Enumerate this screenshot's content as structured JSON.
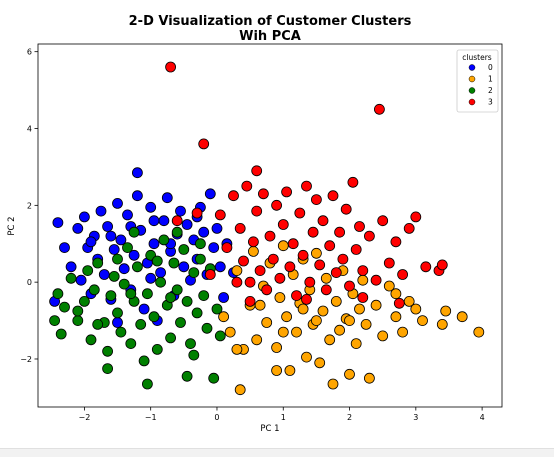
{
  "chart_data": {
    "type": "scatter",
    "title_lines": [
      "2-D Visualization of Customer Clusters",
      "Wih PCA"
    ],
    "xlabel": "PC 1",
    "ylabel": "PC 2",
    "xlim": [
      -2.7,
      4.3
    ],
    "ylim": [
      -3.25,
      6.2
    ],
    "xticks": [
      -2,
      -1,
      0,
      1,
      2,
      3,
      4
    ],
    "yticks": [
      -2,
      0,
      2,
      4,
      6
    ],
    "grid": false,
    "legend": {
      "title": "clusters",
      "placement": "top-right"
    },
    "series": [
      {
        "name": "0",
        "color": "#0000ff",
        "points": [
          [
            -2.4,
            1.55
          ],
          [
            -2.3,
            0.9
          ],
          [
            -2.2,
            0.4
          ],
          [
            -2.1,
            1.4
          ],
          [
            -2.05,
            0.05
          ],
          [
            -2.0,
            1.7
          ],
          [
            -1.95,
            0.9
          ],
          [
            -1.9,
            -0.3
          ],
          [
            -1.85,
            1.2
          ],
          [
            -1.8,
            0.6
          ],
          [
            -1.75,
            1.85
          ],
          [
            -1.7,
            0.2
          ],
          [
            -1.65,
            1.45
          ],
          [
            -1.6,
            -0.45
          ],
          [
            -1.55,
            0.85
          ],
          [
            -1.5,
            2.05
          ],
          [
            -1.45,
            1.1
          ],
          [
            -1.4,
            0.35
          ],
          [
            -1.35,
            1.75
          ],
          [
            -1.3,
            -0.2
          ],
          [
            -1.25,
            0.7
          ],
          [
            -1.2,
            2.25
          ],
          [
            -1.15,
            1.35
          ],
          [
            -1.1,
            -0.7
          ],
          [
            -1.05,
            0.5
          ],
          [
            -1.0,
            1.95
          ],
          [
            -0.95,
            1.0
          ],
          [
            -0.9,
            -1.0
          ],
          [
            -0.85,
            0.25
          ],
          [
            -0.8,
            1.6
          ],
          [
            -0.75,
            2.2
          ],
          [
            -0.7,
            0.8
          ],
          [
            -0.65,
            -0.35
          ],
          [
            -0.6,
            1.25
          ],
          [
            -0.55,
            1.85
          ],
          [
            -0.5,
            0.4
          ],
          [
            -0.45,
            1.5
          ],
          [
            -0.4,
            0.05
          ],
          [
            -0.35,
            1.1
          ],
          [
            -0.3,
            0.6
          ],
          [
            -0.25,
            1.95
          ],
          [
            -0.2,
            1.3
          ],
          [
            -0.15,
            0.2
          ],
          [
            -0.1,
            2.3
          ],
          [
            -0.05,
            0.9
          ],
          [
            0.0,
            1.4
          ],
          [
            0.05,
            0.4
          ],
          [
            0.1,
            -0.4
          ],
          [
            0.15,
            1.0
          ],
          [
            0.25,
            0.25
          ],
          [
            -1.2,
            2.85
          ],
          [
            -1.5,
            -1.05
          ],
          [
            -1.9,
            1.05
          ],
          [
            -1.3,
            1.45
          ],
          [
            -0.95,
            1.6
          ],
          [
            -2.45,
            -0.5
          ],
          [
            -1.6,
            1.2
          ],
          [
            -1.0,
            0.1
          ],
          [
            -0.7,
            1.0
          ],
          [
            -0.3,
            1.7
          ]
        ]
      },
      {
        "name": "1",
        "color": "#ffa500",
        "points": [
          [
            0.1,
            -0.9
          ],
          [
            0.2,
            -1.3
          ],
          [
            0.3,
            0.3
          ],
          [
            0.4,
            -1.75
          ],
          [
            0.5,
            -0.6
          ],
          [
            0.55,
            0.8
          ],
          [
            0.6,
            -1.5
          ],
          [
            0.7,
            -0.1
          ],
          [
            0.75,
            -1.05
          ],
          [
            0.8,
            0.5
          ],
          [
            0.9,
            -1.7
          ],
          [
            0.95,
            -0.4
          ],
          [
            1.0,
            0.95
          ],
          [
            1.05,
            -0.9
          ],
          [
            1.1,
            -2.3
          ],
          [
            1.15,
            0.2
          ],
          [
            1.2,
            -1.3
          ],
          [
            1.25,
            -0.55
          ],
          [
            1.3,
            0.6
          ],
          [
            1.35,
            -1.95
          ],
          [
            1.4,
            -0.2
          ],
          [
            1.45,
            -1.1
          ],
          [
            1.5,
            0.75
          ],
          [
            1.55,
            -2.1
          ],
          [
            1.6,
            -0.75
          ],
          [
            1.65,
            0.1
          ],
          [
            1.7,
            -1.5
          ],
          [
            1.75,
            -2.65
          ],
          [
            1.8,
            -0.5
          ],
          [
            1.85,
            -1.25
          ],
          [
            1.9,
            0.3
          ],
          [
            1.95,
            -0.95
          ],
          [
            2.0,
            -2.4
          ],
          [
            2.05,
            -0.3
          ],
          [
            2.1,
            -1.6
          ],
          [
            2.15,
            -0.7
          ],
          [
            2.2,
            0.05
          ],
          [
            2.25,
            -1.1
          ],
          [
            2.3,
            -2.5
          ],
          [
            2.4,
            -0.6
          ],
          [
            2.5,
            -1.4
          ],
          [
            2.6,
            -0.1
          ],
          [
            2.7,
            -0.9
          ],
          [
            2.8,
            -1.3
          ],
          [
            2.9,
            -0.5
          ],
          [
            3.0,
            -0.7
          ],
          [
            3.1,
            -1.0
          ],
          [
            3.45,
            -0.75
          ],
          [
            3.4,
            -1.1
          ],
          [
            3.7,
            -0.9
          ],
          [
            3.95,
            -1.3
          ],
          [
            0.35,
            -2.8
          ],
          [
            0.3,
            -1.75
          ],
          [
            0.9,
            -2.3
          ],
          [
            1.3,
            -0.7
          ],
          [
            2.0,
            -1.0
          ],
          [
            1.5,
            -1.0
          ],
          [
            1.0,
            -1.3
          ],
          [
            2.7,
            -0.3
          ],
          [
            0.65,
            -0.6
          ]
        ]
      },
      {
        "name": "2",
        "color": "#008000",
        "points": [
          [
            -2.4,
            -0.3
          ],
          [
            -2.35,
            -1.35
          ],
          [
            -2.3,
            -0.65
          ],
          [
            -2.2,
            0.1
          ],
          [
            -2.1,
            -1.0
          ],
          [
            -2.0,
            -0.5
          ],
          [
            -1.95,
            0.3
          ],
          [
            -1.9,
            -1.5
          ],
          [
            -1.85,
            -0.2
          ],
          [
            -1.8,
            0.5
          ],
          [
            -1.7,
            -1.05
          ],
          [
            -1.65,
            -1.8
          ],
          [
            -1.6,
            -0.35
          ],
          [
            -1.55,
            0.15
          ],
          [
            -1.5,
            -0.8
          ],
          [
            -1.45,
            -1.3
          ],
          [
            -1.4,
            -0.05
          ],
          [
            -1.35,
            0.9
          ],
          [
            -1.3,
            -1.6
          ],
          [
            -1.25,
            -0.5
          ],
          [
            -1.2,
            0.4
          ],
          [
            -1.15,
            -1.1
          ],
          [
            -1.1,
            -2.05
          ],
          [
            -1.05,
            -0.3
          ],
          [
            -1.0,
            0.7
          ],
          [
            -0.95,
            -0.9
          ],
          [
            -0.9,
            -1.75
          ],
          [
            -0.85,
            0.0
          ],
          [
            -0.8,
            1.1
          ],
          [
            -0.75,
            -0.6
          ],
          [
            -0.7,
            -1.45
          ],
          [
            -0.65,
            0.5
          ],
          [
            -0.6,
            -0.2
          ],
          [
            -0.55,
            -1.05
          ],
          [
            -0.5,
            0.85
          ],
          [
            -0.45,
            -0.5
          ],
          [
            -0.4,
            -1.6
          ],
          [
            -0.35,
            0.25
          ],
          [
            -0.3,
            -0.8
          ],
          [
            -0.25,
            1.0
          ],
          [
            -0.2,
            -0.35
          ],
          [
            -0.15,
            -1.2
          ],
          [
            -0.1,
            0.35
          ],
          [
            -0.05,
            -2.5
          ],
          [
            0.0,
            -0.7
          ],
          [
            -1.65,
            -2.25
          ],
          [
            -1.05,
            -2.65
          ],
          [
            -0.45,
            -2.45
          ],
          [
            -2.1,
            -0.75
          ],
          [
            -1.3,
            -0.3
          ],
          [
            -0.7,
            -0.4
          ],
          [
            -0.25,
            0.6
          ],
          [
            -1.5,
            0.6
          ],
          [
            -1.8,
            -1.1
          ],
          [
            -0.6,
            1.3
          ],
          [
            -0.9,
            0.55
          ],
          [
            -2.45,
            -1.0
          ],
          [
            -1.25,
            1.3
          ],
          [
            0.05,
            -1.4
          ],
          [
            -0.35,
            -1.9
          ]
        ]
      },
      {
        "name": "3",
        "color": "#ff0000",
        "points": [
          [
            -0.7,
            5.6
          ],
          [
            -0.2,
            3.6
          ],
          [
            2.45,
            4.5
          ],
          [
            0.6,
            2.9
          ],
          [
            -0.6,
            1.6
          ],
          [
            -0.3,
            1.8
          ],
          [
            -0.1,
            0.2
          ],
          [
            0.05,
            1.75
          ],
          [
            0.15,
            0.9
          ],
          [
            0.25,
            2.25
          ],
          [
            0.3,
            0.0
          ],
          [
            0.35,
            1.4
          ],
          [
            0.4,
            0.55
          ],
          [
            0.45,
            2.5
          ],
          [
            0.5,
            -0.5
          ],
          [
            0.55,
            1.05
          ],
          [
            0.6,
            1.85
          ],
          [
            0.65,
            0.3
          ],
          [
            0.7,
            2.3
          ],
          [
            0.75,
            -0.2
          ],
          [
            0.8,
            1.2
          ],
          [
            0.85,
            0.6
          ],
          [
            0.9,
            2.0
          ],
          [
            0.95,
            0.1
          ],
          [
            1.0,
            1.5
          ],
          [
            1.05,
            2.35
          ],
          [
            1.1,
            0.4
          ],
          [
            1.15,
            1.0
          ],
          [
            1.2,
            -0.35
          ],
          [
            1.25,
            1.8
          ],
          [
            1.3,
            0.7
          ],
          [
            1.35,
            2.5
          ],
          [
            1.4,
            0.0
          ],
          [
            1.45,
            1.3
          ],
          [
            1.5,
            2.15
          ],
          [
            1.55,
            0.45
          ],
          [
            1.6,
            1.6
          ],
          [
            1.65,
            -0.2
          ],
          [
            1.7,
            0.95
          ],
          [
            1.75,
            2.25
          ],
          [
            1.8,
            0.25
          ],
          [
            1.85,
            1.3
          ],
          [
            1.9,
            0.6
          ],
          [
            1.95,
            1.9
          ],
          [
            2.0,
            -0.1
          ],
          [
            2.05,
            2.6
          ],
          [
            2.1,
            0.85
          ],
          [
            2.15,
            1.45
          ],
          [
            2.2,
            0.3
          ],
          [
            2.3,
            1.2
          ],
          [
            2.4,
            0.05
          ],
          [
            2.5,
            1.6
          ],
          [
            2.6,
            0.5
          ],
          [
            2.7,
            1.05
          ],
          [
            2.8,
            0.2
          ],
          [
            2.9,
            1.4
          ],
          [
            3.0,
            1.7
          ],
          [
            3.15,
            0.4
          ],
          [
            3.35,
            0.3
          ],
          [
            3.4,
            0.45
          ],
          [
            2.2,
            -0.4
          ],
          [
            2.75,
            -0.55
          ],
          [
            1.35,
            -0.45
          ],
          [
            0.5,
            0.0
          ]
        ]
      }
    ]
  }
}
